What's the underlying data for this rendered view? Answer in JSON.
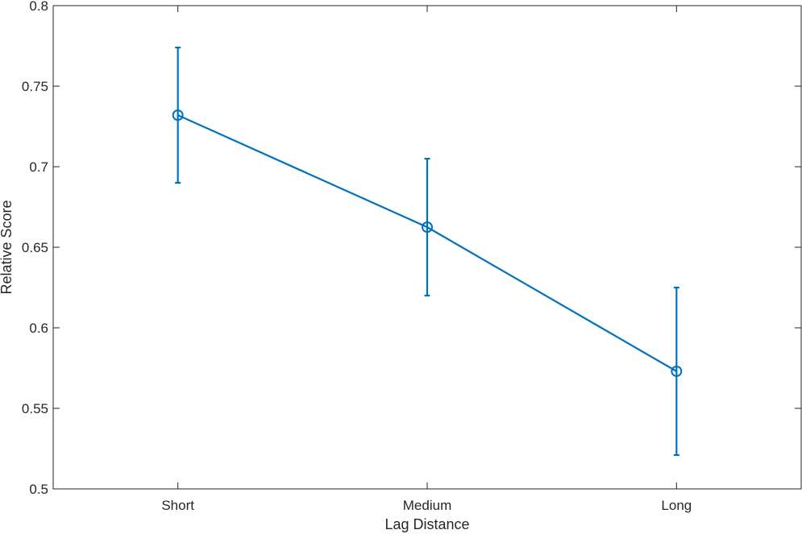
{
  "chart_data": {
    "type": "line",
    "title": "",
    "xlabel": "Lag Distance",
    "ylabel": "Relative Score",
    "categories": [
      "Short",
      "Medium",
      "Long"
    ],
    "series": [
      {
        "values": [
          0.732,
          0.6625,
          0.573
        ],
        "error_lower": [
          0.69,
          0.62,
          0.521
        ],
        "error_upper": [
          0.774,
          0.705,
          0.625
        ],
        "marker": "circle-open",
        "color": "#0072BD"
      }
    ],
    "ylim": [
      0.5,
      0.8
    ],
    "yticks": [
      0.5,
      0.55,
      0.6,
      0.65,
      0.7,
      0.75,
      0.8
    ],
    "ytick_labels": [
      "0.5",
      "0.55",
      "0.6",
      "0.65",
      "0.7",
      "0.75",
      "0.8"
    ],
    "grid": false,
    "legend": "none",
    "axis_color": "#262626"
  }
}
